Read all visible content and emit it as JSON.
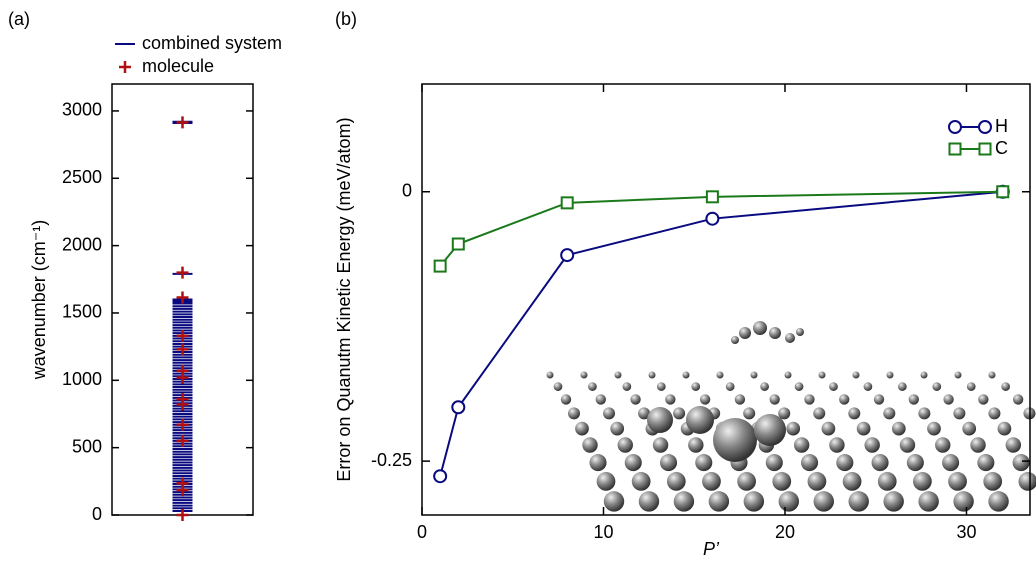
{
  "chart_data": [
    {
      "type": "strip",
      "panel": "(a)",
      "ylabel": "wavenumber (cm⁻¹)",
      "ylim": [
        0,
        3200
      ],
      "yticks": [
        0,
        500,
        1000,
        1500,
        2000,
        2500,
        3000
      ],
      "series": [
        {
          "name": "combined system",
          "color": "#0a0a80",
          "marker": "line",
          "values": [
            2910,
            2920,
            1790,
            1600,
            1585,
            1570,
            1550,
            1530,
            1510,
            1490,
            1470,
            1450,
            1430,
            1410,
            1390,
            1370,
            1350,
            1330,
            1310,
            1290,
            1270,
            1250,
            1230,
            1210,
            1190,
            1170,
            1150,
            1130,
            1110,
            1090,
            1070,
            1050,
            1030,
            1010,
            990,
            970,
            950,
            930,
            910,
            890,
            870,
            850,
            830,
            810,
            790,
            770,
            750,
            730,
            710,
            690,
            670,
            650,
            630,
            610,
            590,
            570,
            550,
            530,
            510,
            490,
            470,
            450,
            430,
            410,
            390,
            370,
            350,
            330,
            310,
            290,
            270,
            250,
            230,
            210,
            190,
            170,
            150,
            130,
            110,
            90,
            70,
            50,
            30
          ]
        },
        {
          "name": "molecule",
          "color": "#b01010",
          "marker": "plus",
          "values": [
            2915,
            1800,
            1615,
            1330,
            1230,
            1070,
            1020,
            860,
            820,
            670,
            550,
            235,
            185,
            0
          ]
        }
      ]
    },
    {
      "type": "line",
      "panel": "(b)",
      "xlabel": "P’",
      "ylabel": "Error on Quanutm Kinetic Energy (meV/atom)",
      "xlim": [
        0,
        33.5
      ],
      "xticks": [
        0,
        10,
        20,
        30
      ],
      "ylim": [
        -0.3,
        0.1
      ],
      "yticks": [
        -0.25,
        0
      ],
      "legend": "upper right",
      "series": [
        {
          "name": "H",
          "color": "#0a0a80",
          "marker": "circle",
          "x": [
            1,
            2,
            8,
            16,
            32
          ],
          "values": [
            -0.264,
            -0.2,
            -0.0588,
            -0.025,
            0
          ]
        },
        {
          "name": "C",
          "color": "#1a7a1a",
          "marker": "square",
          "x": [
            1,
            2,
            8,
            16,
            32
          ],
          "values": [
            -0.069,
            -0.0485,
            -0.0103,
            -0.0047,
            0
          ]
        }
      ]
    }
  ]
}
